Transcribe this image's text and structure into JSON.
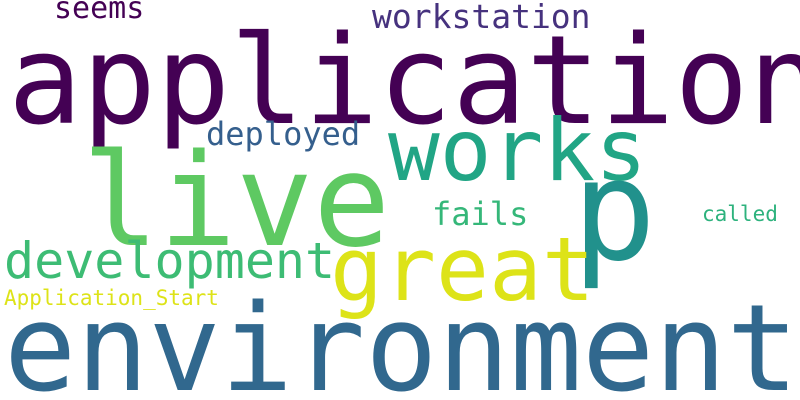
{
  "words": [
    {
      "text": "application",
      "color": "#440154"
    },
    {
      "text": "environment",
      "color": "#31688e"
    },
    {
      "text": "live",
      "color": "#5ec962"
    },
    {
      "text": "works",
      "color": "#21a585"
    },
    {
      "text": "p",
      "color": "#21918c"
    },
    {
      "text": "great",
      "color": "#dde318"
    },
    {
      "text": "development",
      "color": "#3dbc74"
    },
    {
      "text": "workstation",
      "color": "#46327e"
    },
    {
      "text": "seems",
      "color": "#440154"
    },
    {
      "text": "deployed",
      "color": "#355f8d"
    },
    {
      "text": "fails",
      "color": "#35b779"
    },
    {
      "text": "called",
      "color": "#2db27d"
    },
    {
      "text": "Application_Start",
      "color": "#dde318"
    }
  ]
}
